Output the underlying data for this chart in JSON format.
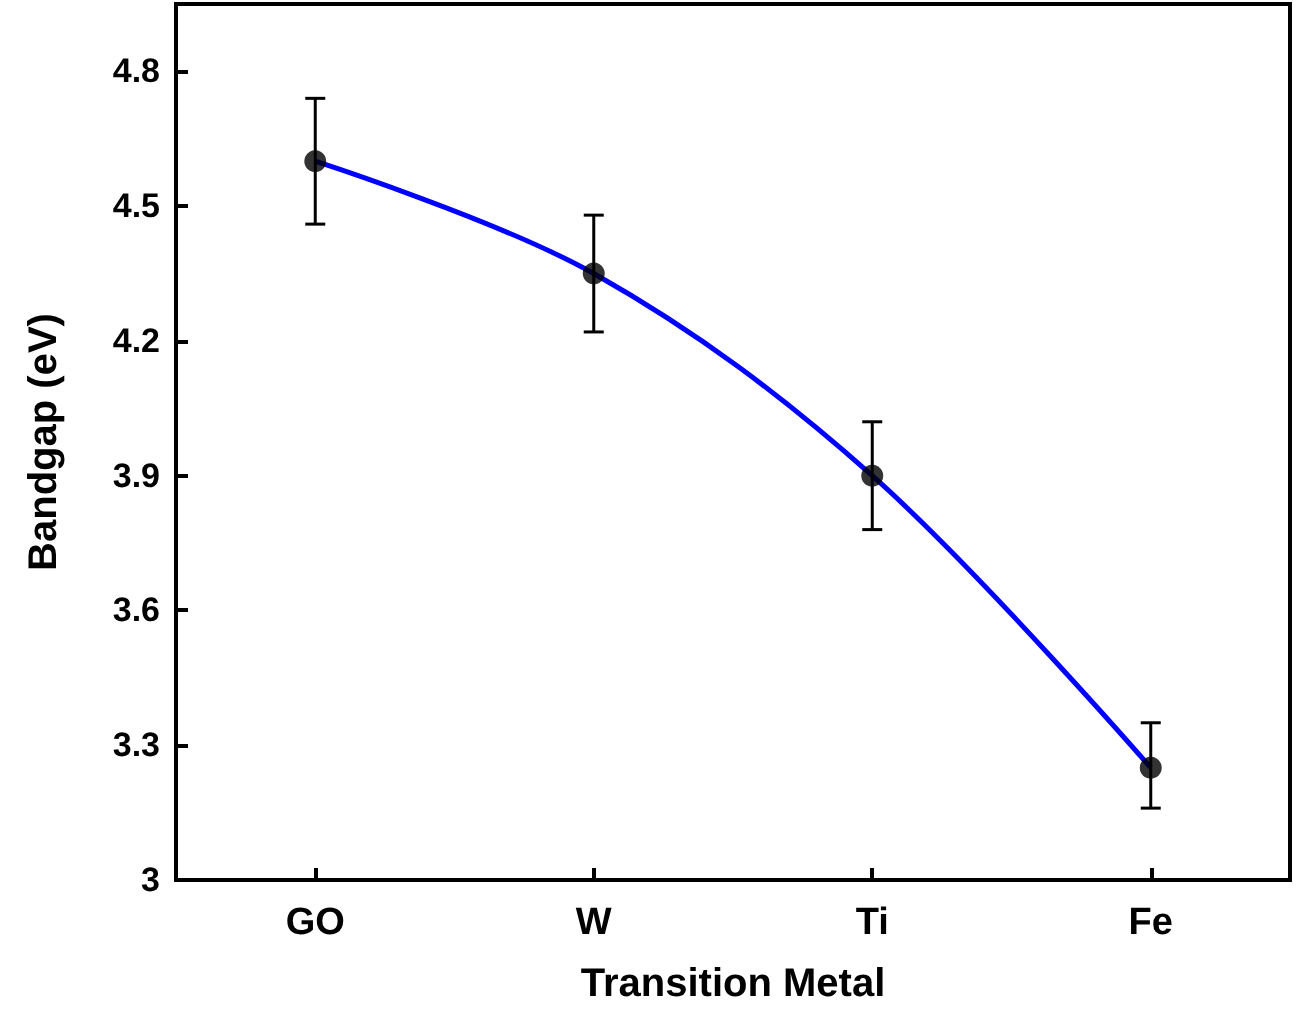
{
  "chart_data": {
    "type": "scatter",
    "xlabel": "Transition Metal",
    "ylabel": "Bandgap (eV)",
    "categories": [
      "GO",
      "W",
      "Ti",
      "Fe"
    ],
    "series": [
      {
        "type": "line",
        "color": "#0000ff",
        "values": [
          4.6,
          4.35,
          3.9,
          3.25
        ],
        "marker": "none"
      },
      {
        "color": "#000000",
        "values": [
          4.6,
          4.35,
          3.9,
          3.25
        ],
        "marker": "circle",
        "errors": [
          [
            4.46,
            4.74
          ],
          [
            4.22,
            4.48
          ],
          [
            3.78,
            4.02
          ],
          [
            3.16,
            3.35
          ]
        ]
      }
    ],
    "ylim": [
      3,
      4.95
    ],
    "yticks": [
      3,
      3.3,
      3.6,
      3.9,
      4.2,
      4.5,
      4.8
    ],
    "grid": false
  }
}
